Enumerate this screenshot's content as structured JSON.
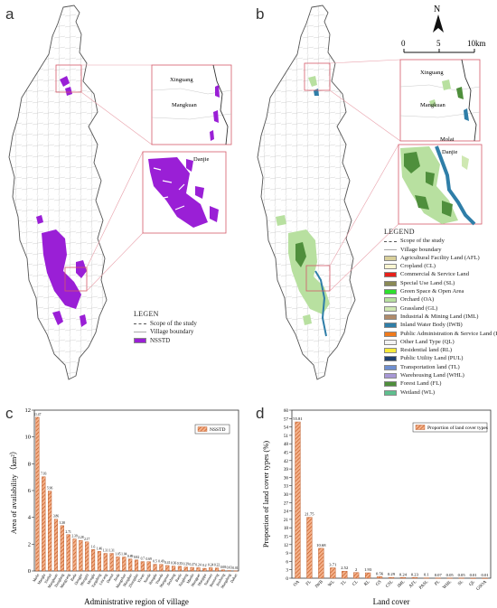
{
  "panel_labels": {
    "a": "a",
    "b": "b",
    "c": "c",
    "d": "d"
  },
  "map_a": {
    "inset_top_labels": [
      "Xinguang",
      "Mangkuan"
    ],
    "inset_bottom_label": "Danjie",
    "legend_title": "LEGEN",
    "legend_items": [
      {
        "label": "Scope of the study",
        "kind": "line"
      },
      {
        "label": "Village boundary",
        "kind": "line-thin"
      },
      {
        "label": "NSSTD",
        "kind": "fill",
        "color": "#9a1fd6"
      }
    ]
  },
  "map_b": {
    "north": "N",
    "scalebar": {
      "ticks": [
        "0",
        "5",
        "10km"
      ]
    },
    "inset_top_labels": [
      "Xinguang",
      "Mangkuan",
      "Molai"
    ],
    "inset_bottom_label": "Danjie",
    "legend_title": "LEGEND",
    "legend_items": [
      {
        "label": "Scope of the study",
        "kind": "line"
      },
      {
        "label": "Village boundary",
        "kind": "line-thin"
      },
      {
        "label": "Agricultural Facility Land (AFL)",
        "kind": "fill",
        "color": "#d8cf9a"
      },
      {
        "label": "Cropland (CL)",
        "kind": "fill",
        "color": "#fbf6d2"
      },
      {
        "label": "Commercial & Service Land",
        "kind": "fill",
        "color": "#e8201a"
      },
      {
        "label": "Special Use Land (SL)",
        "kind": "fill",
        "color": "#8a8a55"
      },
      {
        "label": "Green Space & Open Area",
        "kind": "fill",
        "color": "#2de02d"
      },
      {
        "label": "Orchard (OA)",
        "kind": "fill",
        "color": "#b8e0a0"
      },
      {
        "label": "Grassland (GL)",
        "kind": "fill",
        "color": "#cfe8b2"
      },
      {
        "label": "Industrial & Mining Land (IML)",
        "kind": "fill",
        "color": "#b08a6a"
      },
      {
        "label": "Inland Water Body (IWB)",
        "kind": "fill",
        "color": "#2f7ea8"
      },
      {
        "label": "Public Administration & Service Land (PASL)",
        "kind": "fill",
        "color": "#f07a1c"
      },
      {
        "label": "Other Land Type (QL)",
        "kind": "fill",
        "color": "#f3f3f3"
      },
      {
        "label": "Residential land (RL)",
        "kind": "fill",
        "color": "#f6ea3a"
      },
      {
        "label": "Public Utility Land (PUL)",
        "kind": "fill",
        "color": "#1e3f6e"
      },
      {
        "label": "Transportation land (TL)",
        "kind": "fill",
        "color": "#6f8fd0"
      },
      {
        "label": "Warehousing Land (WHL)",
        "kind": "fill",
        "color": "#a898d6"
      },
      {
        "label": "Forest Land (FL)",
        "kind": "fill",
        "color": "#4f8f3c"
      },
      {
        "label": "Wetland (WL)",
        "kind": "fill",
        "color": "#5fbf8f"
      }
    ]
  },
  "chart_data": [
    {
      "type": "bar",
      "ylabel": "Area of availability（km²）",
      "xlabel": "Administrative region of village",
      "ylim": [
        0,
        12
      ],
      "yticks": [
        0,
        2,
        4,
        6,
        8,
        10,
        12
      ],
      "legend": {
        "label": "NSSTD",
        "position": "top-right"
      },
      "bar_color": "#e8834a",
      "categories": [
        "Mohe",
        "Manglu",
        "Xinhui",
        "Mangkuan",
        "Donglang",
        "Mangyang",
        "Bada",
        "Dongjie",
        "Mengshi",
        "Mengla",
        "Yangdong",
        "Lincang",
        "Dantai",
        "Jinda",
        "Mangzhan",
        "Mangbao",
        "Zhongdan",
        "Yiwan",
        "Nanda",
        "Hongda",
        "Yuanda",
        "Mangman",
        "Jieshang",
        "Banla",
        "Xinglong",
        "Manlie",
        "Mangpao",
        "Mangqia",
        "Nanmen",
        "Banmeng",
        "Jinzhong",
        "Mangdong",
        "Daban"
      ],
      "values": [
        11.47,
        7.03,
        5.96,
        3.86,
        3.38,
        2.71,
        2.39,
        2.28,
        2.17,
        1.6,
        1.46,
        1.31,
        1.31,
        1.05,
        1.04,
        0.89,
        0.82,
        0.7,
        0.69,
        0.5,
        0.49,
        0.41,
        0.36,
        0.35,
        0.29,
        0.27,
        0.24,
        0.2,
        0.24,
        0.22,
        0.08,
        0.03,
        0.01
      ],
      "value_labels": [
        "11.47",
        "7.03",
        "5.96",
        "3.86",
        "3.38",
        "2.71",
        "2.39",
        "2.28",
        "2.17",
        "1.6",
        "1.46",
        "1.31",
        "1.31",
        "1.05",
        "1.04",
        "0.89",
        "0.82",
        "0.7",
        "0.69",
        "0.5",
        "0.49",
        "0.41",
        "0.36",
        "0.35",
        "0.29",
        "0.27",
        "0.24",
        "0.2",
        "0.24",
        "0.22",
        "0.08",
        "0.03",
        "0.01"
      ]
    },
    {
      "type": "bar",
      "ylabel": "Proportion of land cover types (%)",
      "xlabel": "Land cover",
      "ylim": [
        0,
        60
      ],
      "yticks": [
        0,
        3,
        6,
        9,
        12,
        15,
        18,
        21,
        24,
        27,
        30,
        33,
        36,
        39,
        42,
        45,
        48,
        51,
        54,
        57,
        60
      ],
      "legend": {
        "label": "Proportion of land cover types",
        "position": "top-right"
      },
      "bar_color": "#e8834a",
      "categories": [
        "OA",
        "FL",
        "IWB",
        "WL",
        "TL",
        "CL",
        "RL",
        "GS",
        "CSL",
        "IML",
        "AFL",
        "PASL",
        "PL",
        "WHL",
        "SL",
        "QL",
        "GSOA"
      ],
      "values": [
        55.81,
        21.75,
        10.68,
        3.71,
        2.52,
        2,
        1.93,
        0.56,
        0.29,
        0.24,
        0.23,
        0.1,
        0.07,
        0.05,
        0.05,
        0.01,
        0.01
      ],
      "value_labels": [
        "55.81",
        "21.75",
        "10.68",
        "3.71",
        "2.52",
        "2",
        "1.93",
        "0.56",
        "0.29",
        "0.24",
        "0.23",
        "0.1",
        "0.07",
        "0.05",
        "0.05",
        "0.01",
        "0.01"
      ]
    }
  ]
}
